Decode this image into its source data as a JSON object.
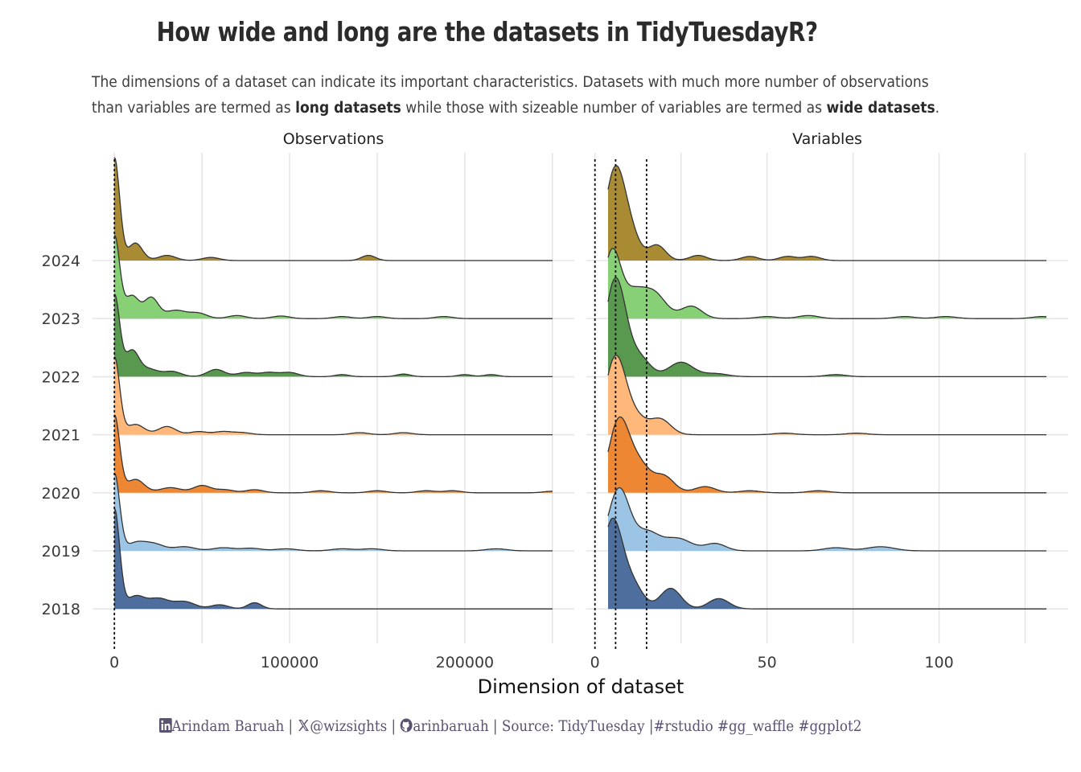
{
  "title": "How wide and long are the datasets in TidyTuesdayR?",
  "subtitle": {
    "line1": "The dimensions of a dataset can indicate its important characteristics. Datasets with much more number of observations",
    "line2_a": "than variables are termed as ",
    "line2_b": "long datasets",
    "line2_c": " while those with sizeable number of variables are termed as ",
    "line2_d": "wide datasets",
    "line2_e": "."
  },
  "caption": {
    "author": "Arindam Baruah",
    "sep1": " | ",
    "x_handle": "@wizsights",
    "sep2": " | ",
    "github": "arinbaruah",
    "rest": " | Source: TidyTuesday |#rstudio #gg_waffle #ggplot2",
    "linkedin_icon": "linkedin-icon",
    "x_icon": "x-icon",
    "github_icon": "github-icon"
  },
  "chart_data": {
    "type": "ridgeline",
    "xlabel": "Dimension of dataset",
    "categories": [
      "2024",
      "2023",
      "2022",
      "2021",
      "2020",
      "2019",
      "2018"
    ],
    "colors": {
      "2024": "#a98b33",
      "2023": "#87d075",
      "2022": "#59994f",
      "2021": "#ffb87a",
      "2020": "#ed8733",
      "2019": "#9cc5e5",
      "2018": "#4e6f9e"
    },
    "panels": [
      {
        "name": "Observations",
        "xlim": [
          -12500,
          262500
        ],
        "xticks": [
          0,
          100000,
          200000
        ],
        "xtick_labels": [
          "0",
          "100000",
          "200000"
        ],
        "minor_gridlines": [
          50000,
          150000,
          250000
        ],
        "reference_lines": [
          0
        ],
        "series": [
          {
            "name": "2024",
            "peaks": [
              [
                0,
                1.0,
                3000
              ],
              [
                12000,
                0.17,
                4000
              ],
              [
                30000,
                0.05,
                5000
              ],
              [
                55000,
                0.03,
                5000
              ],
              [
                145000,
                0.05,
                4000
              ]
            ]
          },
          {
            "name": "2023",
            "peaks": [
              [
                0,
                0.8,
                3000
              ],
              [
                10000,
                0.22,
                4000
              ],
              [
                21000,
                0.2,
                4000
              ],
              [
                35000,
                0.08,
                6000
              ],
              [
                48000,
                0.05,
                5000
              ],
              [
                70000,
                0.03,
                5000
              ],
              [
                95000,
                0.025,
                5000
              ],
              [
                130000,
                0.02,
                5000
              ],
              [
                150000,
                0.02,
                5000
              ],
              [
                188000,
                0.02,
                5000
              ]
            ]
          },
          {
            "name": "2022",
            "peaks": [
              [
                0,
                0.79,
                3000
              ],
              [
                10000,
                0.25,
                4000
              ],
              [
                20000,
                0.07,
                5000
              ],
              [
                33000,
                0.05,
                5000
              ],
              [
                58000,
                0.07,
                5000
              ],
              [
                75000,
                0.04,
                5000
              ],
              [
                88000,
                0.04,
                5000
              ],
              [
                100000,
                0.04,
                5000
              ],
              [
                130000,
                0.02,
                4000
              ],
              [
                165000,
                0.025,
                4000
              ],
              [
                200000,
                0.02,
                4000
              ],
              [
                215000,
                0.02,
                4000
              ]
            ]
          },
          {
            "name": "2021",
            "peaks": [
              [
                0,
                0.75,
                3000
              ],
              [
                12000,
                0.1,
                5000
              ],
              [
                30000,
                0.08,
                5000
              ],
              [
                48000,
                0.03,
                5000
              ],
              [
                62000,
                0.03,
                5000
              ],
              [
                73000,
                0.02,
                5000
              ],
              [
                140000,
                0.02,
                5000
              ],
              [
                165000,
                0.02,
                5000
              ]
            ]
          },
          {
            "name": "2020",
            "peaks": [
              [
                0,
                0.75,
                3000
              ],
              [
                12000,
                0.13,
                5000
              ],
              [
                32000,
                0.05,
                6000
              ],
              [
                50000,
                0.07,
                5000
              ],
              [
                63000,
                0.03,
                5000
              ],
              [
                80000,
                0.03,
                5000
              ],
              [
                118000,
                0.02,
                5000
              ],
              [
                150000,
                0.02,
                5000
              ],
              [
                178000,
                0.02,
                5000
              ],
              [
                193000,
                0.02,
                5000
              ],
              [
                250000,
                0.015,
                5000
              ]
            ]
          },
          {
            "name": "2019",
            "peaks": [
              [
                0,
                0.75,
                3000
              ],
              [
                12000,
                0.07,
                5000
              ],
              [
                22000,
                0.07,
                6000
              ],
              [
                40000,
                0.04,
                6000
              ],
              [
                62000,
                0.03,
                6000
              ],
              [
                78000,
                0.025,
                6000
              ],
              [
                98000,
                0.02,
                6000
              ],
              [
                130000,
                0.02,
                6000
              ],
              [
                147000,
                0.02,
                6000
              ],
              [
                218000,
                0.02,
                6000
              ]
            ]
          },
          {
            "name": "2018",
            "peaks": [
              [
                0,
                0.97,
                3000
              ],
              [
                12000,
                0.12,
                5000
              ],
              [
                25000,
                0.1,
                6000
              ],
              [
                40000,
                0.07,
                6000
              ],
              [
                60000,
                0.04,
                5000
              ],
              [
                80000,
                0.06,
                4000
              ]
            ]
          }
        ]
      },
      {
        "name": "Variables",
        "xlim": [
          -2.5,
          137.5
        ],
        "xticks": [
          0,
          50,
          100
        ],
        "xtick_labels": [
          "0",
          "50",
          "100"
        ],
        "minor_gridlines": [
          25,
          75,
          125
        ],
        "reference_lines": [
          0,
          6,
          15
        ],
        "series": [
          {
            "name": "2024",
            "peaks": [
              [
                6,
                0.9,
                3.0
              ],
              [
                11,
                0.16,
                2.5
              ],
              [
                18,
                0.15,
                2.5
              ],
              [
                30,
                0.05,
                2.5
              ],
              [
                45,
                0.04,
                2.5
              ],
              [
                56,
                0.04,
                2.5
              ],
              [
                63,
                0.04,
                2.5
              ]
            ]
          },
          {
            "name": "2023",
            "peaks": [
              [
                5,
                0.65,
                2.5
              ],
              [
                11,
                0.22,
                3.0
              ],
              [
                17,
                0.25,
                3.5
              ],
              [
                28,
                0.12,
                3.0
              ],
              [
                50,
                0.02,
                3.0
              ],
              [
                62,
                0.03,
                3.0
              ],
              [
                90,
                0.02,
                3.0
              ],
              [
                102,
                0.02,
                3.0
              ],
              [
                130,
                0.02,
                3.0
              ]
            ]
          },
          {
            "name": "2022",
            "peaks": [
              [
                6,
                0.95,
                3.0
              ],
              [
                13,
                0.18,
                3.0
              ],
              [
                25,
                0.14,
                3.5
              ],
              [
                35,
                0.03,
                3.5
              ],
              [
                70,
                0.02,
                3.0
              ]
            ]
          },
          {
            "name": "2021",
            "peaks": [
              [
                6,
                0.75,
                3.0
              ],
              [
                12,
                0.15,
                3.0
              ],
              [
                19,
                0.15,
                3.0
              ],
              [
                55,
                0.015,
                3.0
              ],
              [
                76,
                0.015,
                3.0
              ]
            ]
          },
          {
            "name": "2020",
            "peaks": [
              [
                7,
                0.7,
                3.0
              ],
              [
                13,
                0.25,
                3.0
              ],
              [
                20,
                0.16,
                3.0
              ],
              [
                32,
                0.06,
                3.0
              ],
              [
                45,
                0.02,
                3.0
              ],
              [
                65,
                0.02,
                3.0
              ]
            ]
          },
          {
            "name": "2019",
            "peaks": [
              [
                7,
                0.6,
                3.0
              ],
              [
                15,
                0.18,
                3.5
              ],
              [
                24,
                0.12,
                4.0
              ],
              [
                35,
                0.07,
                3.0
              ],
              [
                70,
                0.03,
                3.5
              ],
              [
                83,
                0.04,
                4.0
              ]
            ]
          },
          {
            "name": "2018",
            "peaks": [
              [
                5,
                0.85,
                3.0
              ],
              [
                11,
                0.22,
                3.0
              ],
              [
                22,
                0.2,
                3.0
              ],
              [
                36,
                0.1,
                3.0
              ]
            ]
          }
        ]
      }
    ]
  }
}
